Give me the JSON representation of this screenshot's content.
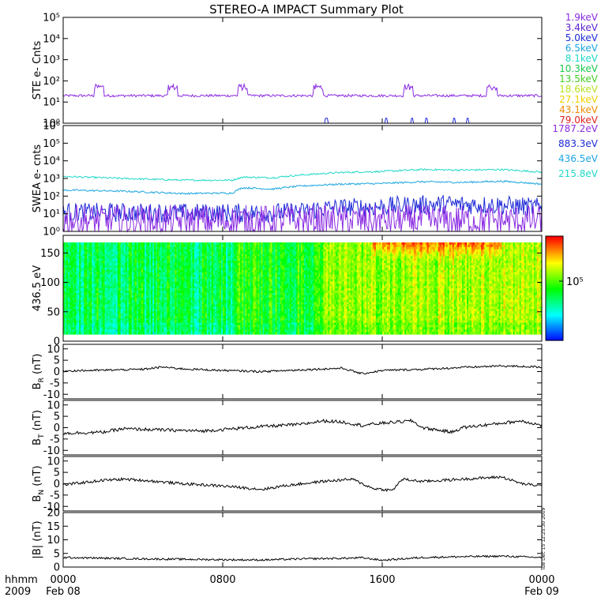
{
  "title": "STEREO-A IMPACT Summary Plot",
  "footer": {
    "hhmm_label": "hhmm",
    "year_label": "2009",
    "side_stamp": "Tue Dec 15 12:25:30 2009"
  },
  "chart_data": [
    {
      "id": "ste",
      "type": "line",
      "ylabel": "STE e- Cnts",
      "yscale": "log",
      "ylim": [
        1,
        100000
      ],
      "yticks": [
        1,
        10,
        100,
        1000,
        10000,
        100000
      ],
      "ytick_labels": [
        "10⁰",
        "10¹",
        "10²",
        "10³",
        "10⁴",
        "10⁵"
      ],
      "legend": [
        {
          "name": "1.9keV",
          "color": "#8a2be2"
        },
        {
          "name": "3.4keV",
          "color": "#5a1fd0"
        },
        {
          "name": "5.0keV",
          "color": "#1e2ad6"
        },
        {
          "name": "6.5keV",
          "color": "#1aa5e0"
        },
        {
          "name": "8.1keV",
          "color": "#20d8c8"
        },
        {
          "name": "10.3keV",
          "color": "#18c84a"
        },
        {
          "name": "13.5keV",
          "color": "#40d020"
        },
        {
          "name": "18.6keV",
          "color": "#b8e020"
        },
        {
          "name": "27.1keV",
          "color": "#f0d000"
        },
        {
          "name": "43.1keV",
          "color": "#f08a00"
        },
        {
          "name": "79.0keV",
          "color": "#e02020"
        }
      ],
      "series": [
        {
          "name": "1.9keV",
          "color": "#8a2be2",
          "baseline": 20,
          "noise": 0.06,
          "bursts_hours": [
            1.8,
            5.5,
            9.0,
            12.8,
            17.3,
            21.5
          ],
          "burst_value": 50
        },
        {
          "name": "5.0keV",
          "color": "#1e2ad6",
          "spikes_hours": [
            13.2,
            16.2,
            17.5,
            18.2,
            19.6,
            20.3
          ],
          "spike_value": 1.7
        }
      ]
    },
    {
      "id": "swea",
      "type": "line",
      "ylabel": "SWEA e- cnts",
      "yscale": "log",
      "ylim": [
        1,
        1000000
      ],
      "yticks": [
        1,
        10,
        100,
        1000,
        10000,
        100000,
        1000000
      ],
      "ytick_labels": [
        "10⁰",
        "10¹",
        "10²",
        "10³",
        "10⁴",
        "10⁵",
        "10⁶"
      ],
      "legend": [
        {
          "name": "1787.2eV",
          "color": "#8a2be2"
        },
        {
          "name": "883.3eV",
          "color": "#1e2ad6"
        },
        {
          "name": "436.5eV",
          "color": "#1aa5e0"
        },
        {
          "name": "215.8eV",
          "color": "#20d8c8"
        }
      ],
      "series": [
        {
          "name": "215.8eV",
          "color": "#20d8c8",
          "points": [
            [
              0,
              1300
            ],
            [
              3,
              1000
            ],
            [
              6,
              800
            ],
            [
              8.5,
              800
            ],
            [
              9,
              1200
            ],
            [
              10.5,
              1100
            ],
            [
              12,
              1600
            ],
            [
              14,
              2200
            ],
            [
              16,
              2500
            ],
            [
              18,
              3200
            ],
            [
              20,
              3000
            ],
            [
              22,
              3200
            ],
            [
              24,
              2300
            ]
          ],
          "noise": 0.05
        },
        {
          "name": "436.5eV",
          "color": "#1aa5e0",
          "points": [
            [
              0,
              220
            ],
            [
              3,
              190
            ],
            [
              6,
              140
            ],
            [
              8.5,
              150
            ],
            [
              9,
              300
            ],
            [
              10.5,
              250
            ],
            [
              12,
              380
            ],
            [
              14,
              480
            ],
            [
              16,
              520
            ],
            [
              18,
              650
            ],
            [
              20,
              600
            ],
            [
              22,
              700
            ],
            [
              24,
              480
            ]
          ],
          "noise": 0.05
        },
        {
          "name": "883.3eV",
          "color": "#1e2ad6",
          "points": [
            [
              0,
              12
            ],
            [
              6,
              11
            ],
            [
              10,
              11
            ],
            [
              12,
              13
            ],
            [
              13,
              20
            ],
            [
              16,
              25
            ],
            [
              19,
              35
            ],
            [
              22,
              30
            ],
            [
              24,
              22
            ]
          ],
          "noise": 0.55
        },
        {
          "name": "1787.2eV",
          "color": "#8a2be2",
          "points": [
            [
              0,
              4
            ],
            [
              12,
              4
            ],
            [
              14,
              4
            ],
            [
              24,
              4
            ]
          ],
          "noise": 0.9
        }
      ]
    },
    {
      "id": "pad",
      "type": "heatmap",
      "ylabel": "436.5 eV",
      "ylim": [
        0,
        180
      ],
      "yticks": [
        0,
        50,
        100,
        150
      ],
      "colorbar": {
        "tick_label": "10⁵"
      }
    },
    {
      "id": "br",
      "type": "line",
      "ylabel_main": "B",
      "ylabel_sub": "R",
      "ylabel_unit": "(nT)",
      "ylim": [
        -12,
        12
      ],
      "yticks": [
        -10,
        -5,
        0,
        5,
        10
      ],
      "series": [
        {
          "color": "#000000",
          "points": [
            [
              0,
              0.3
            ],
            [
              2,
              0.6
            ],
            [
              4,
              1
            ],
            [
              5,
              2
            ],
            [
              6,
              1.2
            ],
            [
              8,
              0.5
            ],
            [
              10,
              0
            ],
            [
              12,
              0.8
            ],
            [
              14,
              1.5
            ],
            [
              15,
              -1
            ],
            [
              16,
              0.5
            ],
            [
              18,
              1
            ],
            [
              20,
              1.8
            ],
            [
              22,
              2.5
            ],
            [
              24,
              2
            ]
          ],
          "noise": 0.45
        }
      ]
    },
    {
      "id": "bt",
      "type": "line",
      "ylabel_main": "B",
      "ylabel_sub": "T",
      "ylabel_unit": "(nT)",
      "ylim": [
        -12,
        12
      ],
      "yticks": [
        -10,
        -5,
        0,
        5,
        10
      ],
      "series": [
        {
          "color": "#000000",
          "points": [
            [
              0,
              -2.5
            ],
            [
              2,
              -2
            ],
            [
              3,
              -0.5
            ],
            [
              5,
              -1
            ],
            [
              7,
              -1.5
            ],
            [
              8.5,
              -0.5
            ],
            [
              10,
              0.5
            ],
            [
              12,
              1.5
            ],
            [
              13,
              3
            ],
            [
              14,
              2.5
            ],
            [
              15,
              1
            ],
            [
              16,
              2
            ],
            [
              17.5,
              3
            ],
            [
              18,
              0
            ],
            [
              19.5,
              -2
            ],
            [
              20,
              0
            ],
            [
              22,
              2
            ],
            [
              23,
              3
            ],
            [
              24,
              1
            ]
          ],
          "noise": 0.7
        }
      ]
    },
    {
      "id": "bn",
      "type": "line",
      "ylabel_main": "B",
      "ylabel_sub": "N",
      "ylabel_unit": "(nT)",
      "ylim": [
        -12,
        12
      ],
      "yticks": [
        -10,
        -5,
        0,
        5,
        10
      ],
      "series": [
        {
          "color": "#000000",
          "points": [
            [
              0,
              -0.5
            ],
            [
              2,
              1.5
            ],
            [
              3,
              2
            ],
            [
              4,
              1.5
            ],
            [
              6,
              0
            ],
            [
              8,
              -1
            ],
            [
              10,
              -2.5
            ],
            [
              11,
              -1
            ],
            [
              13,
              1
            ],
            [
              14.5,
              2
            ],
            [
              15.5,
              -2
            ],
            [
              16.5,
              -3
            ],
            [
              17,
              2
            ],
            [
              18,
              1
            ],
            [
              20,
              2
            ],
            [
              22,
              3
            ],
            [
              23,
              0
            ],
            [
              24,
              -1
            ]
          ],
          "noise": 0.6
        }
      ]
    },
    {
      "id": "bmag",
      "type": "line",
      "ylabel": "|B| (nT)",
      "ylim": [
        0,
        20
      ],
      "yticks": [
        0,
        5,
        10,
        15,
        20
      ],
      "series": [
        {
          "color": "#000000",
          "points": [
            [
              0,
              3.5
            ],
            [
              4,
              3
            ],
            [
              8,
              2.7
            ],
            [
              10,
              2.6
            ],
            [
              12,
              3
            ],
            [
              14,
              3.2
            ],
            [
              15,
              3.4
            ],
            [
              16,
              2.5
            ],
            [
              18,
              3.5
            ],
            [
              20,
              3.8
            ],
            [
              22,
              4
            ],
            [
              24,
              3.5
            ]
          ],
          "noise": 0.35
        }
      ]
    }
  ],
  "xaxis": {
    "range_hours": [
      0,
      24
    ],
    "ticks": [
      {
        "hour": 0,
        "time": "0000",
        "date": "Feb 08"
      },
      {
        "hour": 8,
        "time": "0800",
        "date": ""
      },
      {
        "hour": 16,
        "time": "1600",
        "date": ""
      },
      {
        "hour": 24,
        "time": "0000",
        "date": "Feb 09"
      }
    ]
  }
}
